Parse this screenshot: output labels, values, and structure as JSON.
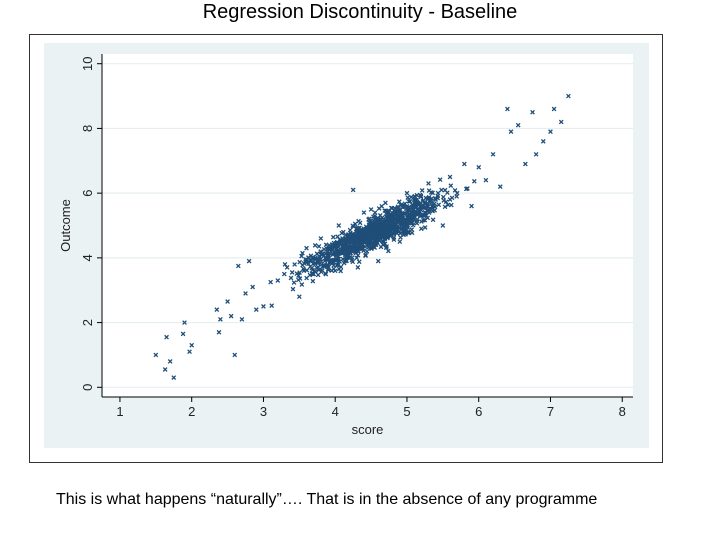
{
  "slide": {
    "title": "Regression Discontinuity - Baseline",
    "caption": "This is what happens “naturally”…. That is in the absence of any programme"
  },
  "colors": {
    "plot_background": "#eaf2f3",
    "plot_area": "#ffffff",
    "marker": "#1f4e79",
    "gridline": "#e6eeef",
    "axis": "#000000"
  },
  "chart_data": {
    "type": "scatter",
    "title": "",
    "xlabel": "score",
    "ylabel": "Outcome",
    "xlim": [
      0.75,
      8.15
    ],
    "ylim": [
      -0.3,
      10.3
    ],
    "xticks": [
      1,
      2,
      3,
      4,
      5,
      6,
      7,
      8
    ],
    "yticks": [
      0,
      2,
      4,
      6,
      8,
      10
    ],
    "grid": true,
    "marker": "x",
    "trend": {
      "intercept": -0.4,
      "slope": 1.14
    },
    "series": [
      {
        "name": "Outcome",
        "points": [
          [
            1.5,
            1.0
          ],
          [
            1.63,
            0.55
          ],
          [
            1.65,
            1.55
          ],
          [
            1.7,
            0.8
          ],
          [
            1.75,
            0.3
          ],
          [
            1.88,
            1.65
          ],
          [
            1.9,
            2.0
          ],
          [
            1.97,
            1.1
          ],
          [
            2.0,
            1.3
          ],
          [
            2.35,
            2.4
          ],
          [
            2.38,
            1.7
          ],
          [
            2.4,
            2.1
          ],
          [
            2.5,
            2.65
          ],
          [
            2.55,
            2.2
          ],
          [
            2.6,
            1.0
          ],
          [
            2.65,
            3.75
          ],
          [
            2.7,
            2.1
          ],
          [
            2.75,
            2.9
          ],
          [
            2.8,
            3.9
          ],
          [
            2.85,
            3.1
          ],
          [
            2.9,
            2.4
          ],
          [
            3.0,
            2.5
          ],
          [
            3.1,
            3.25
          ],
          [
            3.2,
            3.3
          ],
          [
            3.3,
            3.8
          ],
          [
            3.4,
            3.55
          ],
          [
            3.5,
            2.8
          ],
          [
            3.6,
            4.3
          ],
          [
            3.7,
            3.5
          ],
          [
            3.8,
            4.6
          ],
          [
            3.9,
            4.1
          ],
          [
            4.0,
            3.6
          ],
          [
            4.05,
            5.0
          ],
          [
            4.15,
            4.3
          ],
          [
            4.25,
            6.1
          ],
          [
            4.3,
            4.0
          ],
          [
            4.4,
            5.4
          ],
          [
            4.5,
            4.8
          ],
          [
            4.6,
            3.9
          ],
          [
            4.7,
            5.7
          ],
          [
            4.8,
            5.2
          ],
          [
            4.9,
            4.5
          ],
          [
            5.0,
            6.0
          ],
          [
            5.1,
            5.5
          ],
          [
            5.2,
            4.9
          ],
          [
            5.3,
            6.3
          ],
          [
            5.4,
            5.8
          ],
          [
            5.5,
            5.0
          ],
          [
            5.6,
            6.5
          ],
          [
            5.7,
            6.0
          ],
          [
            5.8,
            6.9
          ],
          [
            5.9,
            5.6
          ],
          [
            6.0,
            6.8
          ],
          [
            6.1,
            6.4
          ],
          [
            6.2,
            7.2
          ],
          [
            6.3,
            6.2
          ],
          [
            6.4,
            8.6
          ],
          [
            6.45,
            7.9
          ],
          [
            6.55,
            8.1
          ],
          [
            6.65,
            6.9
          ],
          [
            6.75,
            8.5
          ],
          [
            6.8,
            7.2
          ],
          [
            6.9,
            7.6
          ],
          [
            7.0,
            7.9
          ],
          [
            7.05,
            8.6
          ],
          [
            7.15,
            8.2
          ],
          [
            7.25,
            9.0
          ]
        ]
      }
    ]
  }
}
